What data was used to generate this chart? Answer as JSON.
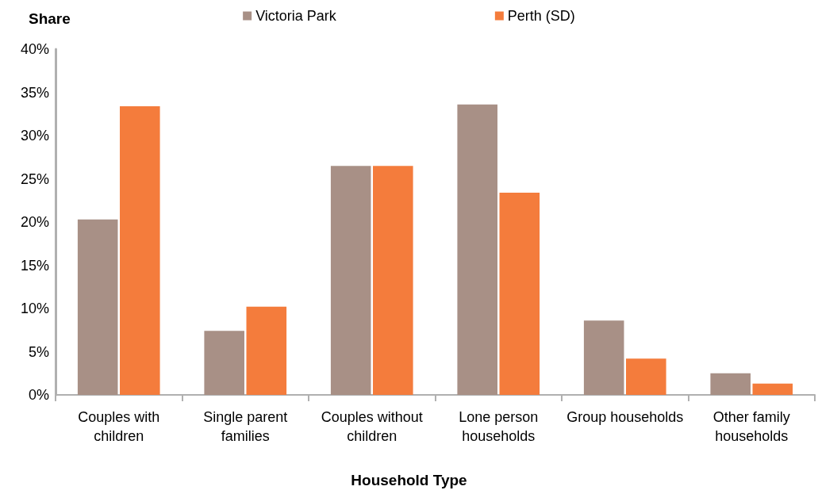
{
  "chart_data": {
    "type": "bar",
    "ylabel": "Share",
    "xlabel": "Household Type",
    "categories": [
      "Couples with\nchildren",
      "Single parent\nfamilies",
      "Couples without\nchildren",
      "Lone person\nhouseholds",
      "Group households",
      "Other family\nhouseholds"
    ],
    "series": [
      {
        "name": "Victoria Park",
        "color": "#a89086",
        "values": [
          20.3,
          7.4,
          26.5,
          33.6,
          8.6,
          2.5
        ]
      },
      {
        "name": "Perth (SD)",
        "color": "#f47c3c",
        "values": [
          33.4,
          10.2,
          26.5,
          23.4,
          4.2,
          1.3
        ]
      }
    ],
    "ylim": [
      0,
      40
    ],
    "yticks": [
      {
        "value": 0,
        "label": "0%"
      },
      {
        "value": 5,
        "label": "5%"
      },
      {
        "value": 10,
        "label": "10%"
      },
      {
        "value": 15,
        "label": "15%"
      },
      {
        "value": 20,
        "label": "20%"
      },
      {
        "value": 25,
        "label": "25%"
      },
      {
        "value": 30,
        "label": "30%"
      },
      {
        "value": 35,
        "label": "35%"
      },
      {
        "value": 40,
        "label": "40%"
      }
    ],
    "grid": false,
    "legend": "top"
  }
}
